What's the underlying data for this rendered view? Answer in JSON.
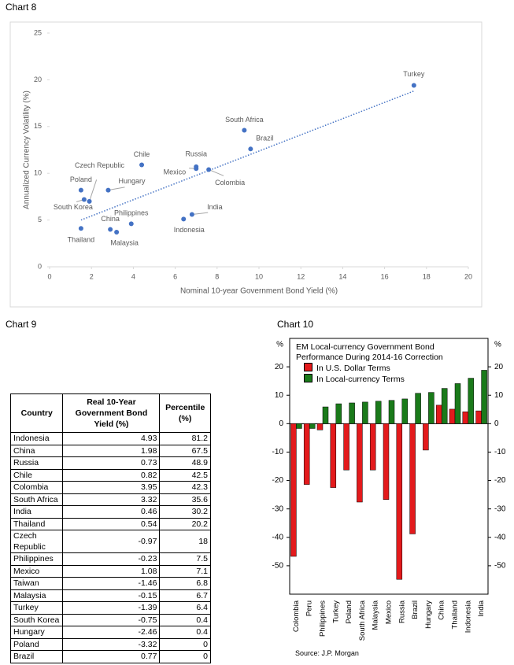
{
  "chart_data": [
    {
      "type": "scatter",
      "label": "Chart 8",
      "x_label": "Nominal 10-year Government Bond Yield (%)",
      "y_label": "Annualized Currency Volatility (%)",
      "xlim": [
        0,
        20
      ],
      "xticks": [
        0,
        2,
        4,
        6,
        8,
        10,
        12,
        14,
        16,
        18,
        20
      ],
      "ylim": [
        0,
        25
      ],
      "yticks": [
        0,
        5,
        10,
        15,
        20,
        25
      ],
      "grid": false,
      "series": [
        {
          "color": "#4472c4",
          "point_labels": [
            "Turkey",
            "South Africa",
            "Brazil",
            "Russia",
            "Mexico",
            "Colombia",
            "Chile",
            "Czech Republic",
            "Poland",
            "Hungary",
            "South Korea",
            "Thailand",
            "China",
            "Malaysia",
            "Philippines",
            "Indonesia",
            "India"
          ],
          "x": [
            17.4,
            9.3,
            9.6,
            7.0,
            7.0,
            7.6,
            4.4,
            1.9,
            1.5,
            2.8,
            1.65,
            1.5,
            2.9,
            3.2,
            3.9,
            6.4,
            6.8
          ],
          "values": [
            19.4,
            14.6,
            12.6,
            10.7,
            10.5,
            10.4,
            10.9,
            7.0,
            8.2,
            8.2,
            7.2,
            4.1,
            4.0,
            3.7,
            4.6,
            5.1,
            5.6
          ]
        }
      ],
      "trendline": {
        "color": "#4472c4",
        "x": [
          1.5,
          17.4
        ],
        "values": [
          5.0,
          18.8
        ]
      }
    },
    {
      "type": "bar",
      "label": "Chart 10",
      "title": "EM Local-currency Government Bond Performance During 2014-16 Correction",
      "y_unit": "%",
      "source": "Source: J.P. Morgan",
      "categories": [
        "Colombia",
        "Peru",
        "Philippines",
        "Turkey",
        "Poland",
        "South Africa",
        "Malaysia",
        "Mexico",
        "Russia",
        "Brazil",
        "Hungary",
        "China",
        "Thailand",
        "Indonesia",
        "India"
      ],
      "ylim": [
        -60,
        30
      ],
      "yticks": [
        20,
        10,
        0,
        -10,
        -20,
        -30,
        -40,
        -50
      ],
      "grid": false,
      "series": [
        {
          "name": "In U.S. Dollar Terms",
          "color": "#e31a1c",
          "values": [
            -46.7,
            -21.4,
            -2.2,
            -22.5,
            -16.3,
            -27.6,
            -16.3,
            -26.7,
            -54.8,
            -38.8,
            -9.3,
            6.5,
            5.1,
            4.2,
            4.5
          ]
        },
        {
          "name": "In Local-currency Terms",
          "color": "#1a7a1a",
          "values": [
            -1.7,
            -1.7,
            5.9,
            7.0,
            7.3,
            7.6,
            7.9,
            8.2,
            8.7,
            10.7,
            11.0,
            12.4,
            14.1,
            16.0,
            18.8
          ]
        }
      ]
    }
  ],
  "table": {
    "label": "Chart 9",
    "columns": [
      "Country",
      "Real 10-Year Government Bond Yield (%)",
      "Percentile (%)"
    ],
    "rows": [
      [
        "Indonesia",
        4.93,
        81.2
      ],
      [
        "China",
        1.98,
        67.5
      ],
      [
        "Russia",
        0.73,
        48.9
      ],
      [
        "Chile",
        0.82,
        42.5
      ],
      [
        "Colombia",
        3.95,
        42.3
      ],
      [
        "South Africa",
        3.32,
        35.6
      ],
      [
        "India",
        0.46,
        30.2
      ],
      [
        "Thailand",
        0.54,
        20.2
      ],
      [
        "Czech Republic",
        -0.97,
        18
      ],
      [
        "Philippines",
        -0.23,
        7.5
      ],
      [
        "Mexico",
        1.08,
        7.1
      ],
      [
        "Taiwan",
        -1.46,
        6.8
      ],
      [
        "Malaysia",
        -0.15,
        6.7
      ],
      [
        "Turkey",
        -1.39,
        6.4
      ],
      [
        "South Korea",
        -0.75,
        0.4
      ],
      [
        "Hungary",
        -2.46,
        0.4
      ],
      [
        "Poland",
        -3.32,
        0
      ],
      [
        "Brazil",
        0.77,
        0
      ]
    ]
  }
}
